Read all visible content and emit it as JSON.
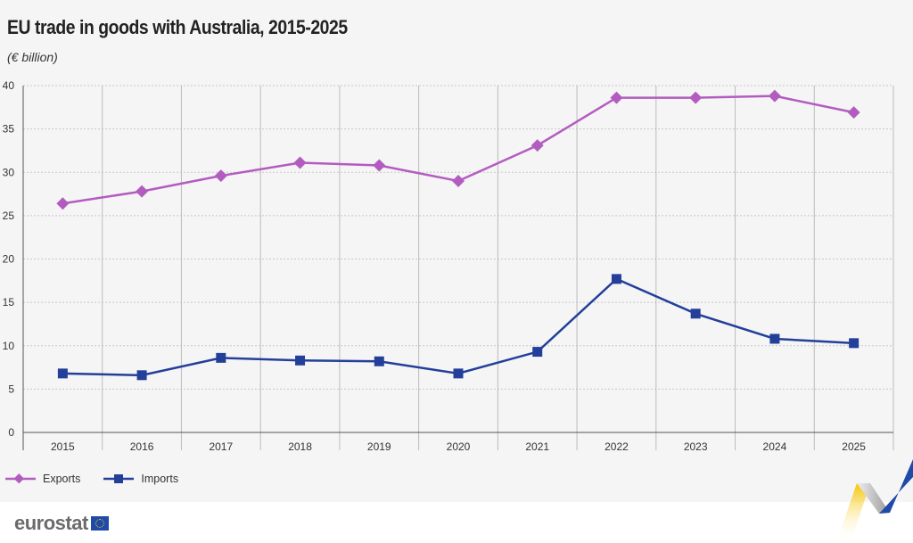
{
  "title": "EU trade in goods with Australia, 2015-2025",
  "subtitle": "(€ billion)",
  "brand": "eurostat",
  "colors": {
    "exports": "#b35cc0",
    "imports": "#233f9a",
    "background": "#f5f5f5"
  },
  "chart_data": {
    "type": "line",
    "title": "EU trade in goods with Australia, 2015-2025",
    "ylabel": "(€ billion)",
    "categories": [
      "2015",
      "2016",
      "2017",
      "2018",
      "2019",
      "2020",
      "2021",
      "2022",
      "2023",
      "2024",
      "2025"
    ],
    "ylim": [
      0,
      40
    ],
    "yticks": [
      "0",
      "5",
      "10",
      "15",
      "20",
      "25",
      "30",
      "35",
      "40"
    ],
    "grid": true,
    "legend": "bottom-left",
    "series": [
      {
        "name": "Exports",
        "marker": "diamond",
        "values": [
          26.4,
          27.8,
          29.6,
          31.1,
          30.8,
          29.0,
          33.1,
          38.6,
          38.6,
          38.8,
          36.9
        ]
      },
      {
        "name": "Imports",
        "marker": "square",
        "values": [
          6.8,
          6.6,
          8.6,
          8.3,
          8.2,
          6.8,
          9.3,
          17.7,
          13.7,
          10.8,
          10.3
        ]
      }
    ]
  }
}
